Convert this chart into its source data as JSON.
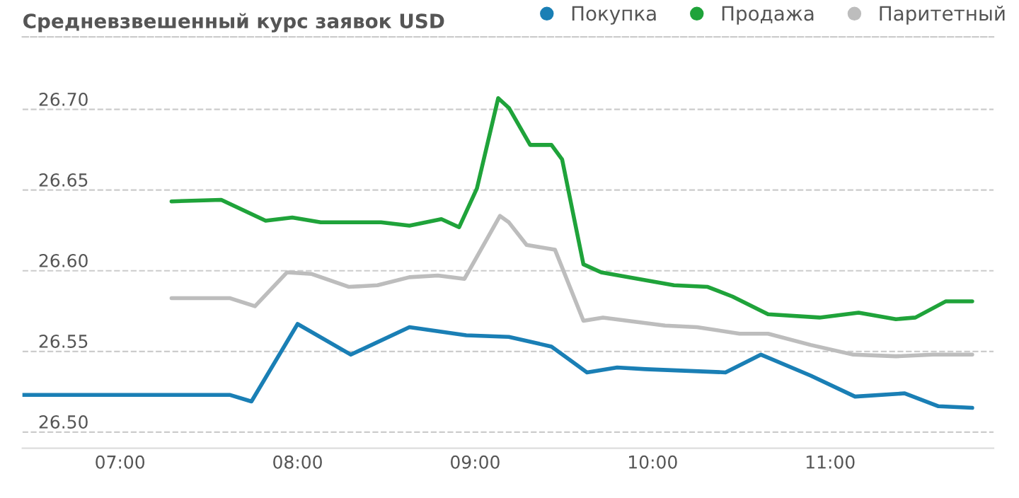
{
  "chart_data": {
    "type": "line",
    "title": "Средневзвешенный курс заявок USD",
    "xlim": [
      6.45,
      11.92
    ],
    "ylim": [
      26.49,
      26.745
    ],
    "xticks": [
      {
        "value": 7,
        "label": "07:00"
      },
      {
        "value": 8,
        "label": "08:00"
      },
      {
        "value": 9,
        "label": "09:00"
      },
      {
        "value": 10,
        "label": "10:00"
      },
      {
        "value": 11,
        "label": "11:00"
      }
    ],
    "yticks": [
      {
        "value": 26.5,
        "label": "26.50"
      },
      {
        "value": 26.55,
        "label": "26.55"
      },
      {
        "value": 26.6,
        "label": "26.60"
      },
      {
        "value": 26.65,
        "label": "26.65"
      },
      {
        "value": 26.7,
        "label": "26.70"
      }
    ],
    "grid": "y",
    "legend": "top right",
    "marker": "none",
    "line_style": "solid",
    "series": [
      {
        "name": "Покупка",
        "color": "#1a7fb5",
        "x": [
          6.45,
          7.62,
          7.74,
          8.0,
          8.3,
          8.63,
          8.95,
          9.19,
          9.43,
          9.63,
          9.8,
          9.96,
          10.41,
          10.61,
          10.89,
          11.14,
          11.42,
          11.61,
          11.8
        ],
        "values": [
          26.523,
          26.523,
          26.519,
          26.567,
          26.548,
          26.565,
          26.56,
          26.559,
          26.553,
          26.537,
          26.54,
          26.539,
          26.537,
          26.548,
          26.535,
          26.522,
          26.524,
          26.516,
          26.515
        ]
      },
      {
        "name": "Продажа",
        "color": "#1fa33a",
        "x": [
          7.29,
          7.57,
          7.82,
          7.97,
          8.13,
          8.47,
          8.63,
          8.81,
          8.91,
          9.01,
          9.13,
          9.19,
          9.31,
          9.43,
          9.49,
          9.61,
          9.71,
          10.12,
          10.31,
          10.45,
          10.65,
          10.94,
          11.16,
          11.37,
          11.48,
          11.65,
          11.8
        ],
        "values": [
          26.643,
          26.644,
          26.631,
          26.633,
          26.63,
          26.63,
          26.628,
          26.632,
          26.627,
          26.651,
          26.707,
          26.701,
          26.678,
          26.678,
          26.669,
          26.604,
          26.599,
          26.591,
          26.59,
          26.584,
          26.573,
          26.571,
          26.574,
          26.57,
          26.571,
          26.581,
          26.581
        ]
      },
      {
        "name": "Паритетный",
        "color": "#bdbdbd",
        "x": [
          7.29,
          7.62,
          7.76,
          7.94,
          8.08,
          8.29,
          8.45,
          8.63,
          8.79,
          8.94,
          9.14,
          9.19,
          9.29,
          9.45,
          9.61,
          9.72,
          10.07,
          10.25,
          10.49,
          10.65,
          10.89,
          11.13,
          11.37,
          11.58,
          11.8
        ],
        "values": [
          26.583,
          26.583,
          26.578,
          26.599,
          26.598,
          26.59,
          26.591,
          26.596,
          26.597,
          26.595,
          26.634,
          26.63,
          26.616,
          26.613,
          26.569,
          26.571,
          26.566,
          26.565,
          26.561,
          26.561,
          26.554,
          26.548,
          26.547,
          26.548,
          26.548
        ]
      }
    ]
  }
}
